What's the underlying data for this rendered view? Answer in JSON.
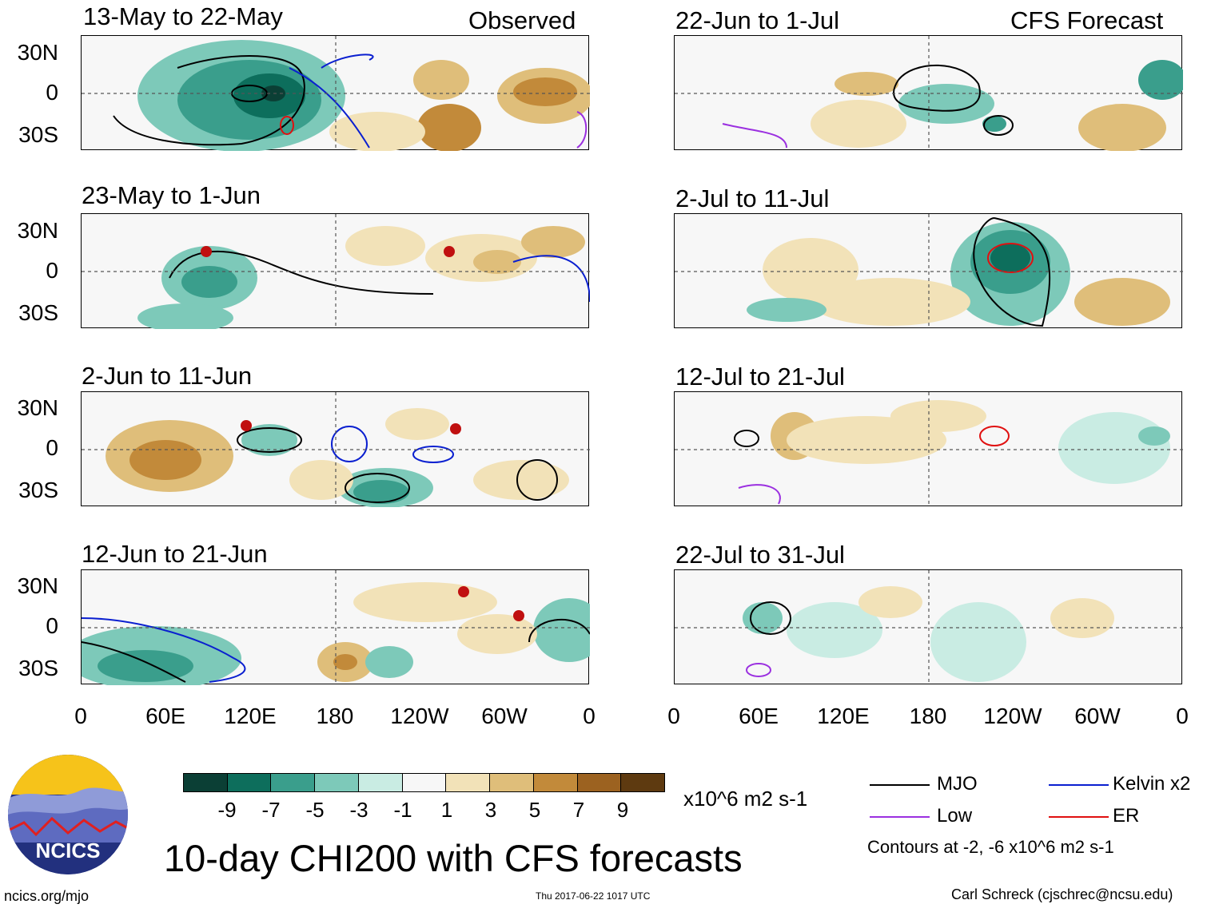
{
  "panels": {
    "left_header": "Observed",
    "right_header": "CFS Forecast",
    "left": [
      {
        "title": "13-May to 22-May"
      },
      {
        "title": "23-May to 1-Jun"
      },
      {
        "title": "2-Jun to 11-Jun"
      },
      {
        "title": "12-Jun to 21-Jun"
      }
    ],
    "right": [
      {
        "title": "22-Jun to 1-Jul"
      },
      {
        "title": "2-Jul to 11-Jul"
      },
      {
        "title": "12-Jul to 21-Jul"
      },
      {
        "title": "22-Jul to 31-Jul"
      }
    ]
  },
  "axes": {
    "lat_labels": [
      "30N",
      "0",
      "30S"
    ],
    "lon_labels": [
      "0",
      "60E",
      "120E",
      "180",
      "120W",
      "60W",
      "0"
    ]
  },
  "colorbar": {
    "ticks": [
      "-9",
      "-7",
      "-5",
      "-3",
      "-1",
      "1",
      "3",
      "5",
      "7",
      "9"
    ],
    "units": "x10^6 m2 s-1",
    "colors": [
      "#0b3f35",
      "#0d6e5c",
      "#3a9e8c",
      "#7dc9b9",
      "#c9ece3",
      "#f7f7f7",
      "#f2e2b8",
      "#dfbe7a",
      "#c28a3a",
      "#9c6220",
      "#5e3a10"
    ]
  },
  "legend": {
    "mjo": "MJO",
    "low": "Low",
    "kelvin": "Kelvin x2",
    "er": "ER",
    "contours_note": "Contours at -2, -6 x10^6 m2 s-1",
    "colors": {
      "mjo": "#000000",
      "low": "#9b30e0",
      "kelvin": "#0a1fd0",
      "er": "#e01010"
    }
  },
  "main_title": "10-day CHI200 with CFS forecasts",
  "logo": {
    "text": "NCICS"
  },
  "footer": {
    "url": "ncics.org/mjo",
    "timestamp": "Thu 2017-06-22 1017 UTC",
    "credit": "Carl Schreck (cjschrec@ncsu.edu)"
  }
}
